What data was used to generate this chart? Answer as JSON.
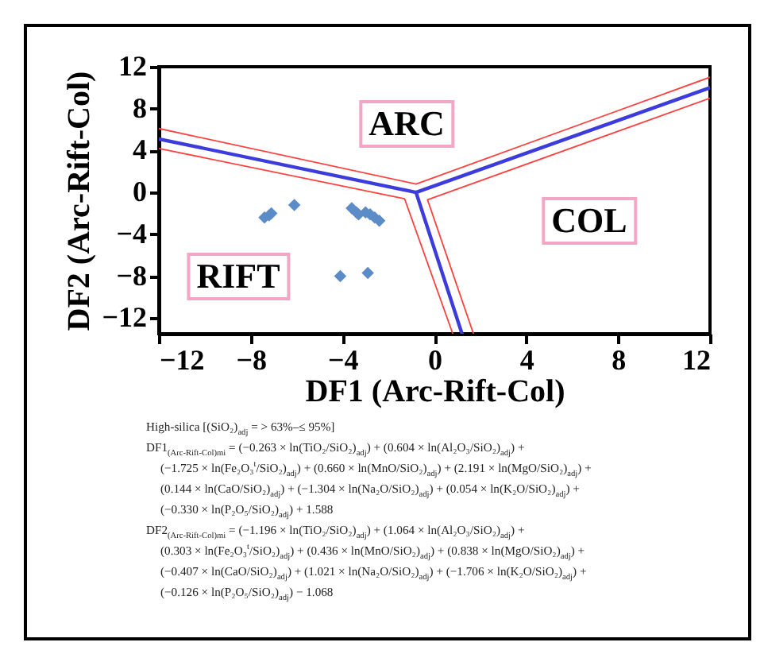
{
  "chart_data": {
    "type": "scatter",
    "xlabel": "DF1 (Arc-Rift-Col)",
    "ylabel": "DF2 (Arc-Rift-Col)",
    "xlim": [
      -12,
      12
    ],
    "ylim": [
      -13.5,
      12
    ],
    "xticks": [
      -12,
      -8,
      -4,
      0,
      4,
      8,
      12
    ],
    "yticks": [
      -12,
      -8,
      -4,
      0,
      4,
      8,
      12
    ],
    "grid": false,
    "series": [
      {
        "type": "line",
        "color": "#ff4040",
        "x": [
          -12,
          -0.8,
          12
        ],
        "values": [
          6.1,
          0.8,
          11.0
        ]
      },
      {
        "type": "line",
        "color": "#ff4040",
        "x": [
          -12,
          -1.3,
          0.8
        ],
        "values": [
          4.2,
          -0.6,
          -13.5
        ]
      },
      {
        "type": "line",
        "color": "#ff4040",
        "x": [
          12,
          -0.3,
          1.7
        ],
        "values": [
          9.0,
          -0.7,
          -13.5
        ]
      },
      {
        "type": "line",
        "color": "#3c3cdc",
        "x": [
          -12,
          -0.8,
          12
        ],
        "values": [
          5.1,
          0.0,
          10.0
        ]
      },
      {
        "type": "line",
        "color": "#3c3cdc",
        "x": [
          -0.8,
          1.2
        ],
        "values": [
          0.0,
          -13.5
        ]
      },
      {
        "marker": "diamond",
        "color": "#5b8cc8",
        "x": [
          -7.4,
          -7.1,
          -7.2,
          -6.1,
          -3.6,
          -3.4,
          -3.3,
          -3.0,
          -2.8,
          -2.6,
          -2.4,
          -4.1,
          -2.9
        ],
        "values": [
          -2.4,
          -2.0,
          -2.2,
          -1.2,
          -1.5,
          -1.9,
          -2.1,
          -1.9,
          -2.1,
          -2.4,
          -2.7,
          -8.0,
          -7.7
        ]
      }
    ],
    "annotations": [
      "ARC",
      "COL",
      "RIFT",
      "High-silica [(SiO₂)$_{adj}$ = > 63%–≤ 95%]",
      "DF1$_{(Arc-Rift-Col)mi}$ = (−0.263 × ln(TiO₂/SiO₂)$_{adj}$) + (0.604 × ln(Al₂O₃/SiO₂)$_{adj}$) +",
      "(−1.725 × ln(Fe₂O₃$^{t}$/SiO₂)$_{adj}$) + (0.660 × ln(MnO/SiO₂)$_{adj}$) + (2.191 × ln(MgO/SiO₂)$_{adj}$) +",
      "(0.144 × ln(CaO/SiO₂)$_{adj}$) + (−1.304 × ln(Na₂O/SiO₂)$_{adj}$) + (0.054 × ln(K₂O/SiO₂)$_{adj}$) +",
      "(−0.330 × ln(P₂O₅/SiO₂)$_{adj}$) + 1.588",
      "DF2$_{(Arc-Rift-Col)mi}$ = (−1.196 × ln(TiO₂/SiO₂)$_{adj}$) + (1.064 × ln(Al₂O₃/SiO₂)$_{adj}$) +",
      "(0.303 × ln(Fe₂O₃$^{t}$/SiO₂)$_{adj}$) + (0.436 × ln(MnO/SiO₂)$_{adj}$) + (0.838 × ln(MgO/SiO₂)$_{adj}$) +",
      "(−0.407 × ln(CaO/SiO₂)$_{adj}$) + (1.021 × ln(Na₂O/SiO₂)$_{adj}$) + (−1.706 × ln(K₂O/SiO₂)$_{adj}$) +",
      "(−0.126 × ln(P₂O₅/SiO₂)$_{adj}$) − 1.068"
    ]
  }
}
